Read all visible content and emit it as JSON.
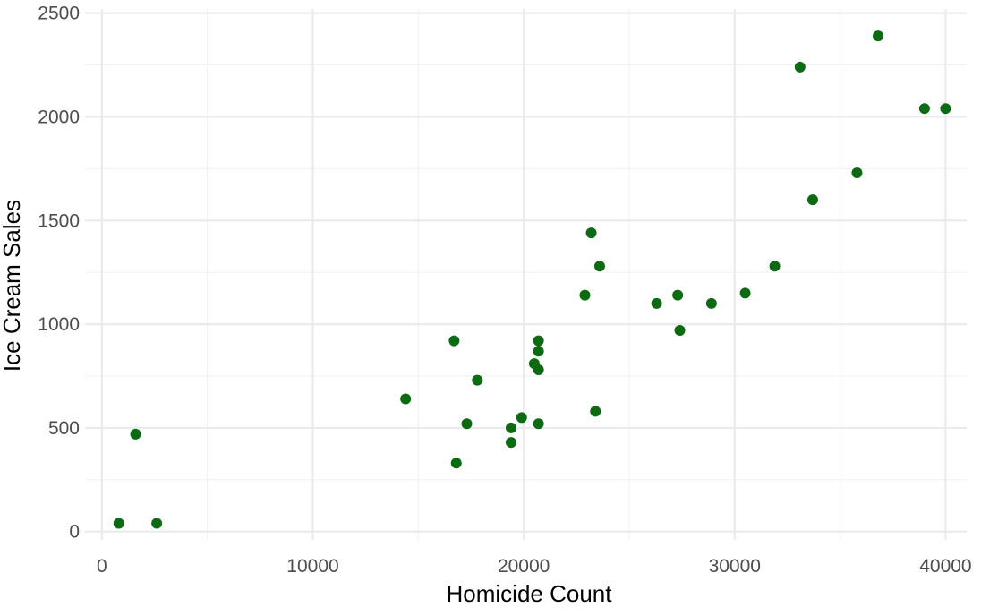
{
  "chart_data": {
    "type": "scatter",
    "title": "",
    "xlabel": "Homicide Count",
    "ylabel": "Ice Cream Sales",
    "xlim": [
      -800,
      41000
    ],
    "ylim": [
      -40,
      2520
    ],
    "x_ticks": [
      0,
      10000,
      20000,
      30000,
      40000
    ],
    "x_minor_ticks": [
      5000,
      15000,
      25000,
      35000
    ],
    "y_ticks": [
      0,
      500,
      1000,
      1500,
      2000,
      2500
    ],
    "y_minor_ticks": [
      250,
      750,
      1250,
      1750,
      2250
    ],
    "grid": true,
    "point_color": "#0b6a12",
    "legend": false,
    "series": [
      {
        "points": [
          {
            "x": 800,
            "y": 40
          },
          {
            "x": 2600,
            "y": 40
          },
          {
            "x": 1600,
            "y": 470
          },
          {
            "x": 14400,
            "y": 640
          },
          {
            "x": 16700,
            "y": 920
          },
          {
            "x": 16800,
            "y": 330
          },
          {
            "x": 17300,
            "y": 520
          },
          {
            "x": 17800,
            "y": 730
          },
          {
            "x": 19400,
            "y": 500
          },
          {
            "x": 19400,
            "y": 430
          },
          {
            "x": 19900,
            "y": 550
          },
          {
            "x": 20500,
            "y": 810
          },
          {
            "x": 20700,
            "y": 920
          },
          {
            "x": 20700,
            "y": 870
          },
          {
            "x": 20700,
            "y": 780
          },
          {
            "x": 20700,
            "y": 520
          },
          {
            "x": 22900,
            "y": 1140
          },
          {
            "x": 23200,
            "y": 1440
          },
          {
            "x": 23400,
            "y": 580
          },
          {
            "x": 23600,
            "y": 1280
          },
          {
            "x": 26300,
            "y": 1100
          },
          {
            "x": 27300,
            "y": 1140
          },
          {
            "x": 27400,
            "y": 970
          },
          {
            "x": 28900,
            "y": 1100
          },
          {
            "x": 30500,
            "y": 1150
          },
          {
            "x": 31900,
            "y": 1280
          },
          {
            "x": 33100,
            "y": 2240
          },
          {
            "x": 33700,
            "y": 1600
          },
          {
            "x": 35800,
            "y": 1730
          },
          {
            "x": 36800,
            "y": 2390
          },
          {
            "x": 39000,
            "y": 2040
          },
          {
            "x": 40000,
            "y": 2040
          }
        ]
      }
    ]
  }
}
